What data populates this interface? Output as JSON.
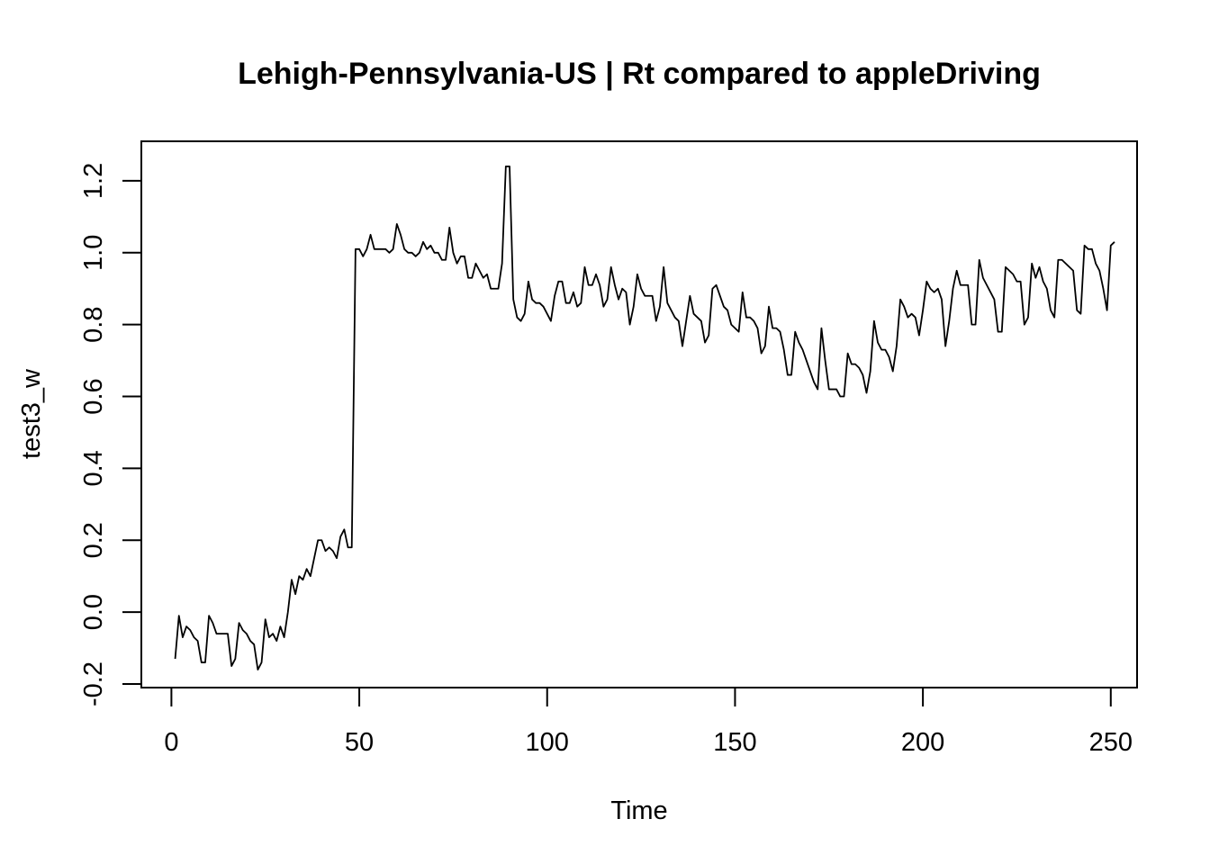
{
  "chart_data": {
    "type": "line",
    "title": "Lehigh-Pennsylvania-US | Rt compared to appleDriving",
    "xlabel": "Time",
    "ylabel": "test3_w",
    "xlim": [
      -8,
      257
    ],
    "ylim": [
      -0.21,
      1.31
    ],
    "x_ticks": [
      0,
      50,
      100,
      150,
      200,
      250
    ],
    "x_tick_labels": [
      "0",
      "50",
      "100",
      "150",
      "200",
      "250"
    ],
    "y_ticks": [
      -0.2,
      0.0,
      0.2,
      0.4,
      0.6,
      0.8,
      1.0,
      1.2
    ],
    "y_tick_labels": [
      "-0.2",
      "0.0",
      "0.2",
      "0.4",
      "0.6",
      "0.8",
      "1.0",
      "1.2"
    ],
    "grid": false,
    "legend": "none",
    "line_color": "#000000",
    "series": [
      {
        "x_start": 1,
        "x_step": 1,
        "values": [
          -0.13,
          -0.01,
          -0.07,
          -0.04,
          -0.05,
          -0.07,
          -0.08,
          -0.14,
          -0.14,
          -0.01,
          -0.03,
          -0.06,
          -0.06,
          -0.06,
          -0.06,
          -0.15,
          -0.13,
          -0.03,
          -0.05,
          -0.06,
          -0.08,
          -0.09,
          -0.16,
          -0.14,
          -0.02,
          -0.07,
          -0.06,
          -0.08,
          -0.04,
          -0.07,
          0.0,
          0.09,
          0.05,
          0.1,
          0.09,
          0.12,
          0.1,
          0.15,
          0.2,
          0.2,
          0.17,
          0.18,
          0.17,
          0.15,
          0.21,
          0.23,
          0.18,
          0.18,
          1.01,
          1.01,
          0.99,
          1.01,
          1.05,
          1.01,
          1.01,
          1.01,
          1.01,
          1.0,
          1.01,
          1.08,
          1.05,
          1.01,
          1.0,
          1.0,
          0.99,
          1.0,
          1.03,
          1.01,
          1.02,
          1.0,
          1.0,
          0.98,
          0.98,
          1.07,
          1.0,
          0.97,
          0.99,
          0.99,
          0.93,
          0.93,
          0.97,
          0.95,
          0.93,
          0.94,
          0.9,
          0.9,
          0.9,
          0.97,
          1.24,
          1.24,
          0.87,
          0.82,
          0.81,
          0.83,
          0.92,
          0.87,
          0.86,
          0.86,
          0.85,
          0.83,
          0.81,
          0.88,
          0.92,
          0.92,
          0.86,
          0.86,
          0.89,
          0.85,
          0.86,
          0.96,
          0.91,
          0.91,
          0.94,
          0.91,
          0.85,
          0.87,
          0.96,
          0.91,
          0.87,
          0.9,
          0.89,
          0.8,
          0.85,
          0.94,
          0.9,
          0.88,
          0.88,
          0.88,
          0.81,
          0.85,
          0.96,
          0.86,
          0.84,
          0.82,
          0.81,
          0.74,
          0.81,
          0.88,
          0.83,
          0.82,
          0.81,
          0.75,
          0.77,
          0.9,
          0.91,
          0.88,
          0.85,
          0.84,
          0.8,
          0.79,
          0.78,
          0.89,
          0.82,
          0.82,
          0.81,
          0.79,
          0.72,
          0.74,
          0.85,
          0.79,
          0.79,
          0.78,
          0.73,
          0.66,
          0.66,
          0.78,
          0.75,
          0.73,
          0.7,
          0.67,
          0.64,
          0.62,
          0.79,
          0.7,
          0.62,
          0.62,
          0.62,
          0.6,
          0.6,
          0.72,
          0.69,
          0.69,
          0.68,
          0.66,
          0.61,
          0.67,
          0.81,
          0.75,
          0.73,
          0.73,
          0.71,
          0.67,
          0.74,
          0.87,
          0.85,
          0.82,
          0.83,
          0.82,
          0.77,
          0.84,
          0.92,
          0.9,
          0.89,
          0.9,
          0.87,
          0.74,
          0.81,
          0.9,
          0.95,
          0.91,
          0.91,
          0.91,
          0.8,
          0.8,
          0.98,
          0.93,
          0.91,
          0.89,
          0.87,
          0.78,
          0.78,
          0.96,
          0.95,
          0.94,
          0.92,
          0.92,
          0.8,
          0.82,
          0.97,
          0.93,
          0.96,
          0.92,
          0.9,
          0.84,
          0.82,
          0.98,
          0.98,
          0.97,
          0.96,
          0.95,
          0.84,
          0.83,
          1.02,
          1.01,
          1.01,
          0.97,
          0.95,
          0.9,
          0.84,
          1.02,
          1.03
        ]
      }
    ]
  }
}
